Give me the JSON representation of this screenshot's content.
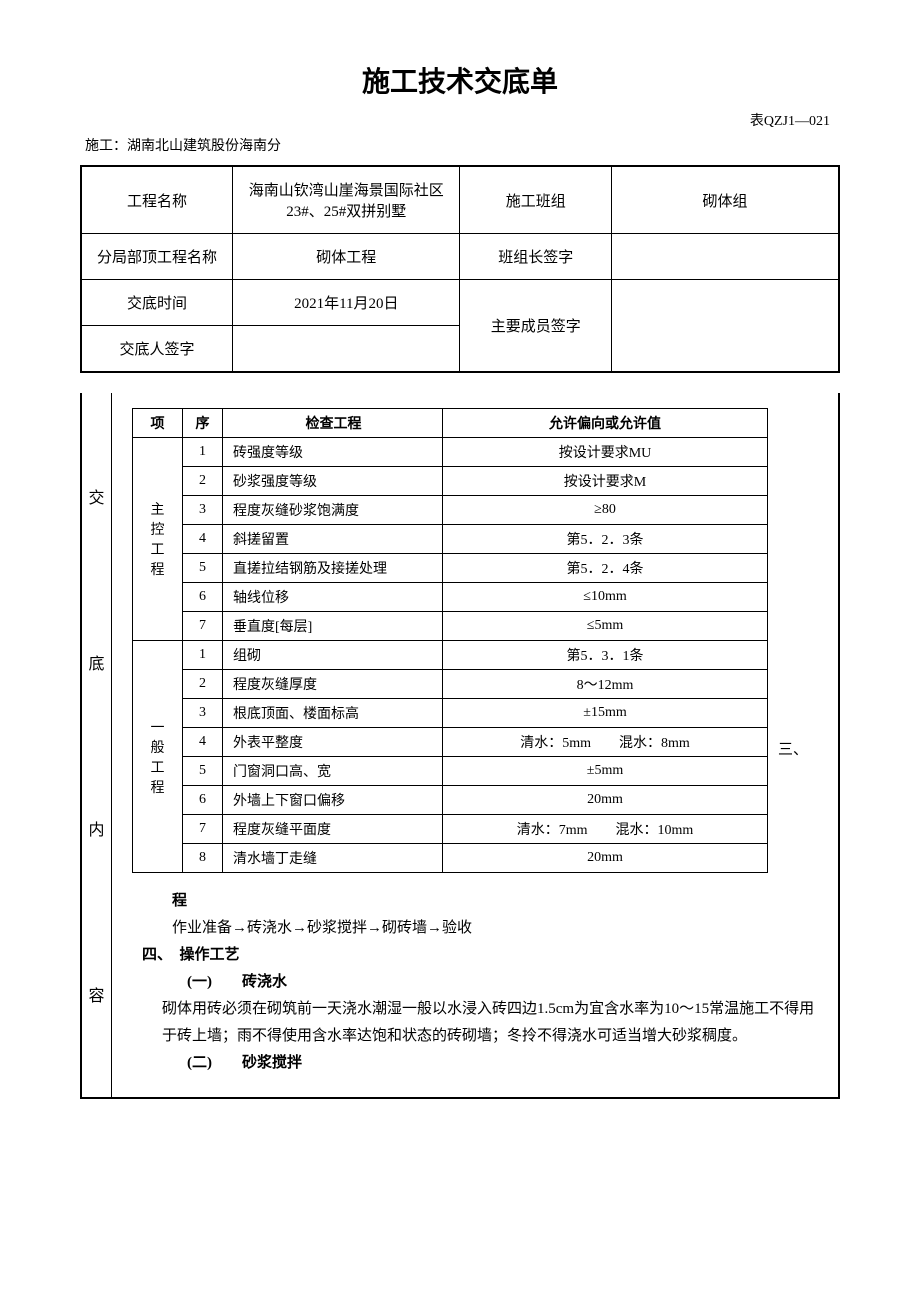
{
  "title": "施工技术交底单",
  "table_code": "表QZJ1—021",
  "contractor": "施工：湖南北山建筑股份海南分",
  "header": {
    "project_name_label": "工程名称",
    "project_name_value": "海南山钦湾山崖海景国际社区23#、25#双拼别墅",
    "team_label": "施工班组",
    "team_value": "砌体组",
    "sub_project_label": "分局部顶工程名称",
    "sub_project_value": "砌体工程",
    "team_leader_label": "班组长签字",
    "team_leader_value": "",
    "time_label": "交底时间",
    "time_value": "2021年11月20日",
    "members_label": "主要成员签字",
    "members_value": "",
    "signer_label": "交底人签字",
    "signer_value": ""
  },
  "side_label_chars": [
    "交",
    "底",
    "内",
    "容"
  ],
  "inspection": {
    "col_item": "项",
    "col_seq": "序",
    "col_check": "检查工程",
    "col_allow": "允许偏向或允许值",
    "group1_label": "主控工程",
    "group2_label": "一般工程",
    "rows1": [
      {
        "seq": "1",
        "check": "砖强度等级",
        "allow": "按设计要求MU"
      },
      {
        "seq": "2",
        "check": "砂浆强度等级",
        "allow": "按设计要求M"
      },
      {
        "seq": "3",
        "check": "程度灰缝砂浆饱满度",
        "allow": "≥80"
      },
      {
        "seq": "4",
        "check": "斜搓留置",
        "allow": "第5．2．3条"
      },
      {
        "seq": "5",
        "check": "直搓拉结钢筋及接搓处理",
        "allow": "第5．2．4条"
      },
      {
        "seq": "6",
        "check": "轴线位移",
        "allow": "≤10mm"
      },
      {
        "seq": "7",
        "check": "垂直度[每层]",
        "allow": "≤5mm"
      }
    ],
    "rows2": [
      {
        "seq": "1",
        "check": "组砌",
        "allow": "第5．3．1条"
      },
      {
        "seq": "2",
        "check": "程度灰缝厚度",
        "allow": "8～12mm"
      },
      {
        "seq": "3",
        "check": "根底顶面、楼面标高",
        "allow": "±15mm"
      },
      {
        "seq": "4",
        "check": "外表平整度",
        "allow": "清水：5mm　　混水：8mm"
      },
      {
        "seq": "5",
        "check": "门窗洞口高、宽",
        "allow": "±5mm"
      },
      {
        "seq": "6",
        "check": "外墙上下窗口偏移",
        "allow": "20mm"
      },
      {
        "seq": "7",
        "check": "程度灰缝平面度",
        "allow": "清水：7mm　　混水：10mm"
      },
      {
        "seq": "8",
        "check": "清水墙丁走缝",
        "allow": "20mm"
      }
    ]
  },
  "right_marker": "三、",
  "sections": {
    "process_heading": "程",
    "process_text": "作业准备→砖浇水→砂浆搅拌→砌砖墙→验收",
    "s4_heading": "四、　操作工艺",
    "s4_1_heading": "(一)　　砖浇水",
    "s4_1_text": "砌体用砖必须在砌筑前一天浇水潮湿一般以水浸入砖四边1.5cm为宜含水率为10～15常温施工不得用于砖上墙；雨不得使用含水率达饱和状态的砖砌墙；冬拎不得浇水可适当增大砂浆稠度。",
    "s4_2_heading": "(二)　　砂浆搅拌"
  }
}
